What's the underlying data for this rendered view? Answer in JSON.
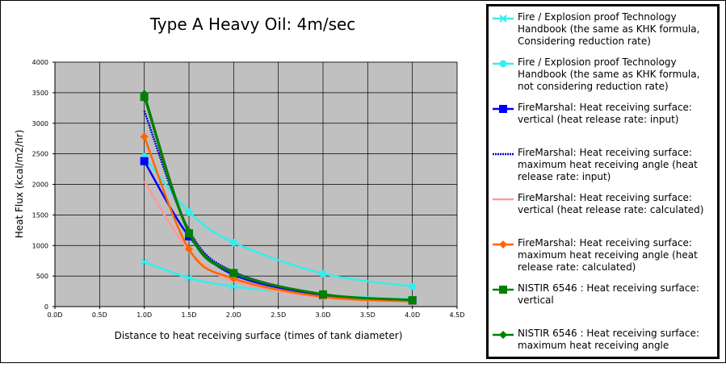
{
  "chart_data": {
    "type": "line",
    "title": "Type A Heavy Oil: 4m/sec",
    "xlabel": "Distance to heat receiving surface (times of tank diameter)",
    "ylabel": "Heat Flux (kcal/m2/hr)",
    "xlim": [
      0,
      4.5
    ],
    "ylim": [
      0,
      4000
    ],
    "xticks": [
      0,
      0.5,
      1,
      1.5,
      2,
      2.5,
      3,
      3.5,
      4,
      4.5
    ],
    "xtick_labels": [
      "0.0D",
      "0.5D",
      "1.0D",
      "1.5D",
      "2.0D",
      "2.5D",
      "3.0D",
      "3.5D",
      "4.0D",
      "4.5D"
    ],
    "yticks": [
      0,
      500,
      1000,
      1500,
      2000,
      2500,
      3000,
      3500,
      4000
    ],
    "ytick_labels": [
      "0",
      "500",
      "1000",
      "1500",
      "2000",
      "2500",
      "3000",
      "3500",
      "4000"
    ],
    "grid": true,
    "legend_position": "right",
    "background": "#c0c0c0",
    "series": [
      {
        "name": "Fire / Explosion proof Technology Handbook (the same as KHK formula, Considering reduction rate)",
        "color": "#33eeee",
        "marker": "x",
        "dash": false,
        "x": [
          1.0,
          1.5,
          2.0,
          3.0,
          4.0
        ],
        "y": [
          730,
          470,
          330,
          190,
          120
        ]
      },
      {
        "name": "Fire / Explosion proof Technology Handbook (the same as KHK formula, not considering reduction rate)",
        "color": "#33eeee",
        "marker": "circle",
        "dash": false,
        "x": [
          1.0,
          1.5,
          2.0,
          3.0,
          4.0
        ],
        "y": [
          2450,
          1550,
          1050,
          540,
          330
        ]
      },
      {
        "name": "FireMarshal: Heat receiving surface: vertical (heat release rate: input)",
        "color": "#0000ff",
        "marker": "square",
        "dash": false,
        "x": [
          1.0,
          1.5,
          2.0,
          3.0,
          4.0
        ],
        "y": [
          2380,
          1150,
          520,
          190,
          100
        ]
      },
      {
        "name": "FireMarshal: Heat receiving surface: maximum heat receiving angle (heat release rate: input)",
        "color": "#0000cc",
        "marker": "none",
        "dash": true,
        "x": [
          1.0,
          1.5,
          2.0,
          3.0,
          4.0
        ],
        "y": [
          3200,
          1250,
          570,
          200,
          105
        ]
      },
      {
        "name": "FireMarshal: Heat receiving surface: vertical (heat release rate: calculated)",
        "color": "#ff9999",
        "marker": "none",
        "dash": false,
        "x": [
          1.0,
          1.5,
          2.0,
          3.0,
          4.0
        ],
        "y": [
          2050,
          920,
          420,
          150,
          80
        ]
      },
      {
        "name": "FireMarshal: Heat receiving surface: maximum heat receiving angle (heat release rate: calculated)",
        "color": "#ff6600",
        "marker": "diamond",
        "dash": false,
        "x": [
          1.0,
          1.5,
          2.0,
          3.0,
          4.0
        ],
        "y": [
          2780,
          940,
          460,
          160,
          85
        ]
      },
      {
        "name": "NISTIR 6546 : Heat receiving surface: vertical",
        "color": "#008000",
        "marker": "square",
        "dash": false,
        "x": [
          1.0,
          1.5,
          2.0,
          3.0,
          4.0
        ],
        "y": [
          3430,
          1200,
          550,
          200,
          105
        ]
      },
      {
        "name": "NISTIR 6546 : Heat receiving surface: maximum heat receiving angle",
        "color": "#008000",
        "marker": "diamond",
        "dash": false,
        "x": [
          1.0,
          1.5,
          2.0,
          3.0,
          4.0
        ],
        "y": [
          3480,
          1230,
          560,
          205,
          110
        ]
      }
    ]
  }
}
